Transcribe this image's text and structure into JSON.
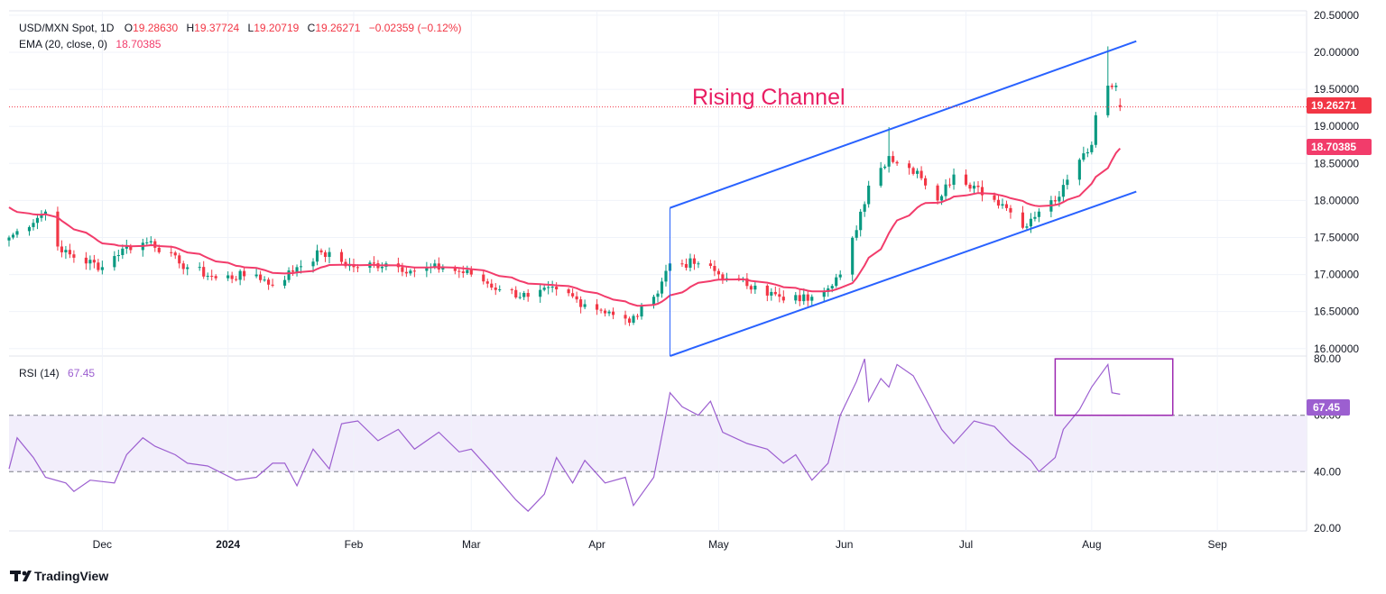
{
  "colors": {
    "up": "#089981",
    "down": "#F23645",
    "ema": "#F23C6B",
    "channel": "#2962FF",
    "rsi": "#9C5FD0",
    "rsi_band": "#F2EEFB",
    "box": "#9C27B0",
    "annotation": "#E91E63",
    "price_line": "#F23645"
  },
  "legend": {
    "symbol": "USD/MXN Spot, 1D",
    "o_label": "O",
    "o_value": "19.28630",
    "h_label": "H",
    "h_value": "19.37724",
    "l_label": "L",
    "l_value": "19.20719",
    "c_label": "C",
    "c_value": "19.26271",
    "change": "−0.02359 (−0.12%)",
    "ema_label": "EMA (20, close, 0)",
    "ema_value": "18.70385",
    "rsi_label": "RSI (14)",
    "rsi_value": "67.45"
  },
  "annotation": {
    "text": "Rising Channel"
  },
  "badges": {
    "last_price": "19.26271",
    "ema_price": "18.70385",
    "rsi_last": "67.45"
  },
  "brand": {
    "name": "TradingView"
  },
  "chart_data": {
    "type": "candlestick",
    "price_axis": {
      "range": [
        15.9,
        20.56
      ],
      "ticks": [
        "16.00000",
        "16.50000",
        "17.00000",
        "17.50000",
        "18.00000",
        "18.50000",
        "19.00000",
        "19.50000",
        "20.00000",
        "20.50000"
      ]
    },
    "rsi_axis": {
      "range": [
        19,
        81
      ],
      "ticks": [
        "20.00",
        "40.00",
        "60.00",
        "80.00"
      ],
      "band": [
        40,
        60
      ]
    },
    "x_axis": {
      "date_range": [
        "2023-11-08",
        "2024-09-23"
      ],
      "ticks": [
        {
          "label": "Dec",
          "date": "2023-12-01"
        },
        {
          "label": "2024",
          "date": "2024-01-01"
        },
        {
          "label": "Feb",
          "date": "2024-02-01"
        },
        {
          "label": "Mar",
          "date": "2024-03-01"
        },
        {
          "label": "Apr",
          "date": "2024-04-01"
        },
        {
          "label": "May",
          "date": "2024-05-01"
        },
        {
          "label": "Jun",
          "date": "2024-06-01"
        },
        {
          "label": "Jul",
          "date": "2024-07-01"
        },
        {
          "label": "Aug",
          "date": "2024-08-01"
        },
        {
          "label": "Sep",
          "date": "2024-09-01"
        }
      ]
    },
    "close_key_points": [
      [
        "2023-11-08",
        17.5
      ],
      [
        "2023-11-17",
        17.85
      ],
      [
        "2023-11-21",
        17.3
      ],
      [
        "2023-12-01",
        17.1
      ],
      [
        "2023-12-06",
        17.35
      ],
      [
        "2023-12-13",
        17.45
      ],
      [
        "2023-12-20",
        17.15
      ],
      [
        "2023-12-29",
        16.95
      ],
      [
        "2024-01-08",
        17.0
      ],
      [
        "2024-01-12",
        16.85
      ],
      [
        "2024-01-18",
        17.1
      ],
      [
        "2024-01-24",
        17.3
      ],
      [
        "2024-02-01",
        17.1
      ],
      [
        "2024-02-09",
        17.15
      ],
      [
        "2024-02-16",
        17.05
      ],
      [
        "2024-02-23",
        17.1
      ],
      [
        "2024-03-01",
        17.0
      ],
      [
        "2024-03-08",
        16.8
      ],
      [
        "2024-03-15",
        16.7
      ],
      [
        "2024-03-22",
        16.8
      ],
      [
        "2024-03-29",
        16.6
      ],
      [
        "2024-04-04",
        16.5
      ],
      [
        "2024-04-09",
        16.35
      ],
      [
        "2024-04-15",
        16.7
      ],
      [
        "2024-04-19",
        17.15
      ],
      [
        "2024-04-26",
        17.15
      ],
      [
        "2024-05-03",
        16.95
      ],
      [
        "2024-05-10",
        16.85
      ],
      [
        "2024-05-17",
        16.65
      ],
      [
        "2024-05-24",
        16.7
      ],
      [
        "2024-05-31",
        17.0
      ],
      [
        "2024-06-04",
        17.6
      ],
      [
        "2024-06-07",
        18.2
      ],
      [
        "2024-06-12",
        18.6
      ],
      [
        "2024-06-14",
        18.5
      ],
      [
        "2024-06-19",
        18.4
      ],
      [
        "2024-06-24",
        18.0
      ],
      [
        "2024-06-28",
        18.35
      ],
      [
        "2024-07-03",
        18.2
      ],
      [
        "2024-07-10",
        17.95
      ],
      [
        "2024-07-16",
        17.65
      ],
      [
        "2024-07-19",
        17.85
      ],
      [
        "2024-07-24",
        18.05
      ],
      [
        "2024-07-29",
        18.55
      ],
      [
        "2024-08-01",
        18.75
      ],
      [
        "2024-08-02",
        19.15
      ],
      [
        "2024-08-05",
        19.55
      ],
      [
        "2024-08-07",
        19.55
      ],
      [
        "2024-08-08",
        19.26271
      ]
    ],
    "spikes": [
      {
        "date": "2024-04-19",
        "high": 17.9
      },
      {
        "date": "2024-06-12",
        "high": 18.99
      },
      {
        "date": "2024-08-05",
        "high": 20.08
      }
    ],
    "ema": {
      "period": 20,
      "last": 18.70385
    },
    "channel": {
      "upper": [
        [
          "2024-04-19",
          17.9
        ],
        [
          "2024-08-12",
          20.15
        ]
      ],
      "lower": [
        [
          "2024-04-19",
          15.9
        ],
        [
          "2024-08-12",
          18.12
        ]
      ]
    },
    "rsi": {
      "period": 14,
      "last": 67.45,
      "key_points": [
        [
          "2023-11-08",
          41
        ],
        [
          "2023-11-10",
          52
        ],
        [
          "2023-11-14",
          45
        ],
        [
          "2023-11-17",
          38
        ],
        [
          "2023-11-22",
          36
        ],
        [
          "2023-11-24",
          33
        ],
        [
          "2023-11-28",
          37
        ],
        [
          "2023-12-04",
          36
        ],
        [
          "2023-12-07",
          46
        ],
        [
          "2023-12-11",
          52
        ],
        [
          "2023-12-14",
          49
        ],
        [
          "2023-12-19",
          46
        ],
        [
          "2023-12-22",
          43
        ],
        [
          "2023-12-27",
          42
        ],
        [
          "2024-01-03",
          37
        ],
        [
          "2024-01-08",
          38
        ],
        [
          "2024-01-12",
          43
        ],
        [
          "2024-01-15",
          43
        ],
        [
          "2024-01-18",
          35
        ],
        [
          "2024-01-22",
          48
        ],
        [
          "2024-01-26",
          41
        ],
        [
          "2024-01-29",
          57
        ],
        [
          "2024-02-02",
          58
        ],
        [
          "2024-02-07",
          51
        ],
        [
          "2024-02-12",
          55
        ],
        [
          "2024-02-16",
          48
        ],
        [
          "2024-02-22",
          54
        ],
        [
          "2024-02-27",
          47
        ],
        [
          "2024-03-01",
          48
        ],
        [
          "2024-03-06",
          40
        ],
        [
          "2024-03-12",
          30
        ],
        [
          "2024-03-15",
          26
        ],
        [
          "2024-03-19",
          32
        ],
        [
          "2024-03-22",
          45
        ],
        [
          "2024-03-26",
          36
        ],
        [
          "2024-03-29",
          44
        ],
        [
          "2024-04-03",
          36
        ],
        [
          "2024-04-08",
          38
        ],
        [
          "2024-04-10",
          28
        ],
        [
          "2024-04-15",
          38
        ],
        [
          "2024-04-18",
          60
        ],
        [
          "2024-04-19",
          68
        ],
        [
          "2024-04-22",
          63
        ],
        [
          "2024-04-26",
          60
        ],
        [
          "2024-04-29",
          65
        ],
        [
          "2024-05-02",
          54
        ],
        [
          "2024-05-08",
          50
        ],
        [
          "2024-05-13",
          48
        ],
        [
          "2024-05-17",
          43
        ],
        [
          "2024-05-20",
          46
        ],
        [
          "2024-05-24",
          37
        ],
        [
          "2024-05-28",
          43
        ],
        [
          "2024-05-31",
          60
        ],
        [
          "2024-06-04",
          72
        ],
        [
          "2024-06-06",
          80
        ],
        [
          "2024-06-07",
          65
        ],
        [
          "2024-06-10",
          73
        ],
        [
          "2024-06-12",
          70
        ],
        [
          "2024-06-14",
          78
        ],
        [
          "2024-06-18",
          74
        ],
        [
          "2024-06-21",
          66
        ],
        [
          "2024-06-25",
          55
        ],
        [
          "2024-06-28",
          50
        ],
        [
          "2024-07-03",
          58
        ],
        [
          "2024-07-08",
          56
        ],
        [
          "2024-07-12",
          50
        ],
        [
          "2024-07-17",
          44
        ],
        [
          "2024-07-19",
          40
        ],
        [
          "2024-07-23",
          45
        ],
        [
          "2024-07-25",
          55
        ],
        [
          "2024-07-29",
          62
        ],
        [
          "2024-08-01",
          70
        ],
        [
          "2024-08-05",
          78
        ],
        [
          "2024-08-06",
          68
        ],
        [
          "2024-08-08",
          67.45
        ]
      ],
      "highlight_box": {
        "x": [
          "2024-07-23",
          "2024-08-21"
        ],
        "y": [
          60,
          80
        ]
      }
    }
  }
}
